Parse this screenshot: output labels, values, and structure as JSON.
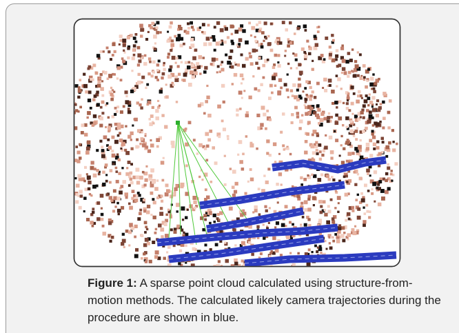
{
  "figure": {
    "label": "Figure 1:",
    "caption": "A sparse point cloud calculated using structure-from-motion methods. The calculated likely camera trajectories during the procedure are shown in blue."
  }
}
